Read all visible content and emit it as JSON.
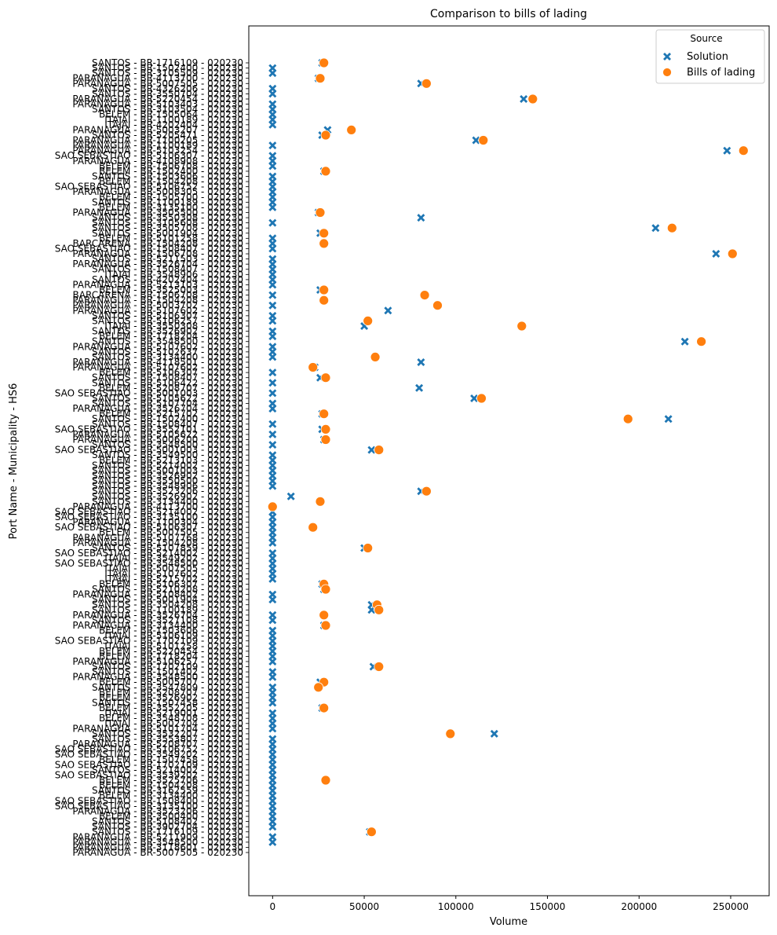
{
  "chart_data": {
    "type": "scatter",
    "title": "Comparison to bills of lading",
    "xlabel": "Volume",
    "ylabel": "Port Name - Municipality - HS6",
    "xlim": [
      -13000,
      271000
    ],
    "xticks": [
      0,
      50000,
      100000,
      150000,
      200000,
      250000
    ],
    "xtick_labels": [
      "0",
      "50000",
      "100000",
      "150000",
      "200000",
      "250000"
    ],
    "categories": [
      "SANTOS - BR-1716109 - 020230",
      "SANTOS - BR-1502400 - 020230",
      "SANTOS - BR-3105509 - 020230",
      "PARANAGUA - BR-4113700 - 020230",
      "PARANAGUA - BR-5007505 - 020230",
      "SANTOS - BR-4326206 - 020230",
      "SANTOS - BR-3550704 - 020230",
      "PARANAGUA - BR-5220454 - 020230",
      "PARANAGUA - BR-5103403 - 020230",
      "SANTOS - BR-3103504 - 020230",
      "BELEM - BR-1505064 - 020230",
      "ITAJAI - BR-1100189 - 020230",
      "ITAJAI - BR-4202404 - 020230",
      "PARANAGUA - BR-5003207 - 020230",
      "SANTOS - BR-5205471 - 020230",
      "PARANAGUA - BR-1100205 - 020230",
      "PARANAGUA - BR-1100189 - 020230",
      "PARANAGUA - BR-5103254 - 020230",
      "SAO SEBASTIAO - BR-5106307 - 020230",
      "PARANAGUA - BR-4108908 - 020230",
      "BELEM - BR-1506708 - 020230",
      "BELEM - BR-1502400 - 020230",
      "SANTOS - BR-1503606 - 020230",
      "BELEM - BR-1504208 - 020230",
      "SAO SEBASTIAO - BR-5106752 - 020230",
      "PARANAGUA - BR-5008305 - 020230",
      "BELEM - BR-1505700 - 020230",
      "SANTOS - BR-1100189 - 020230",
      "BELEM - BR-3135100 - 020230",
      "PARANAGUA - BR-3505500 - 020230",
      "SANTOS - BR-3550308 - 020230",
      "SANTOS - BR-3105608 - 020230",
      "SANTOS - BR-3505708 - 020230",
      "SANTOS - BR-5001904 - 020230",
      "BELEM - BR-5101258 - 020230",
      "BARCARENA - BR-1504208 - 020230",
      "SAO SEBASTIAO - BR-1508407 - 020230",
      "PARANAGUA - BR-1506708 - 020230",
      "SANTOS - BR-5211503 - 020230",
      "PARANAGUA - BR-3526704 - 020230",
      "SANTOS - BR-1508407 - 020230",
      "ITAJAI - BR-3548906 - 020230",
      "SANTOS - BR-4202404 - 020230",
      "PARANAGUA - BR-5213103 - 020230",
      "BELEM - BR-3525003 - 020230",
      "BARCARENA - BR-1506708 - 020230",
      "PARANAGUA - BR-1504208 - 020230",
      "PARANAGUA - BR-5003702 - 020230",
      "PARANAGUA - BR-5107602 - 020230",
      "SANTOS - BR-5106307 - 020230",
      "SANTOS - BR-5106257 - 020230",
      "ITAJAI - BR-3550308 - 020230",
      "SANTOS - BR-3526902 - 020230",
      "BELEM - BR-1718204 - 020230",
      "SANTOS - BR-3548500 - 020230",
      "PARANAGUA - BR-5107602 - 020230",
      "SANTOS - BR-5102637 - 020230",
      "SANTOS - BR-3134400 - 020230",
      "PARANAGUA - BR-4118501 - 020230",
      "PARANAGUA - BR-5107602 - 020230",
      "BELEM - BR-5106307 - 020230",
      "SANTOS - BR-1508407 - 020230",
      "SANTOS - BR-5106422 - 020230",
      "BELEM - BR-5208707 - 020230",
      "SAO SEBASTIAO - BR-5001003 - 020230",
      "SANTOS - BR-5105622 - 020230",
      "SANTOS - BR-5107704 - 020230",
      "PARANAGUA - BR-3526704 - 020230",
      "BELEM - BR-5215702 - 020230",
      "SANTOS - BR-1502400 - 020230",
      "SANTOS - BR-1508407 - 020230",
      "SAO SEBASTIAO - BR-3552101 - 020230",
      "PARANAGUA - BR-5105622 - 020230",
      "PARANAGUA - BR-5006200 - 020230",
      "SANTOS - BR-3548500 - 020230",
      "SAO SEBASTIAO - BR-5001003 - 020230",
      "SANTOS - BR-3549500 - 020230",
      "BELEM - BR-5213103 - 020230",
      "SANTOS - BR-5214002 - 020230",
      "SANTOS - BR-5001003 - 020230",
      "SANTOS - BR-3526902 - 020230",
      "SANTOS - BR-3550500 - 020230",
      "SANTOS - BR-3548906 - 020230",
      "SANTOS - BR-3523206 - 020230",
      "SANTOS - BR-3526902 - 020230",
      "SANTOS - BR-3134400 - 020230",
      "PARANAGUA - BR-4113700 - 020230",
      "SAO SEBASTIAO - BR-5214002 - 020230",
      "SAO SEBASTIAO - BR-3135100 - 020230",
      "PARANAGUA - BR-1100304 - 020230",
      "SAO SEBASTIAO - BR-5106307 - 020230",
      "BELEM - BR-5007505 - 020230",
      "PARANAGUA - BR-5107768 - 020230",
      "PARANAGUA - BR-1504208 - 020230",
      "SANTOS - BR-5107859 - 020230",
      "SAO SEBASTIAO - BR-5214002 - 020230",
      "ITAJAI - BR-3549202 - 020230",
      "SAO SEBASTIAO - BR-3548500 - 020230",
      "ITAJAI - BR-5007505 - 020230",
      "ITAJAI - BR-5107602 - 020230",
      "ITAJAI - BR-5215702 - 020230",
      "BELEM - BR-5106307 - 020230",
      "SANTOS - BR-5210208 - 020230",
      "PARANAGUA - BR-5108402 - 020230",
      "SANTOS - BR-5001904 - 020230",
      "SANTOS - BR-3504208 - 020230",
      "SANTOS - BR-1100189 - 020230",
      "PARANAGUA - BR-3526704 - 020230",
      "SANTOS - BR-3527108 - 020230",
      "PARANAGUA - BR-3134400 - 020230",
      "BELEM - BR-1503606 - 020230",
      "ITAJAI - BR-5106109 - 020230",
      "SAO SEBASTIAO - BR-1702109 - 020230",
      "ITAJAI - BR-5101258 - 020230",
      "BELEM - BR-5220454 - 020230",
      "BELEM - BR-1718204 - 020230",
      "PARANAGUA - BR-5106257 - 020230",
      "SANTOS - BR-1702109 - 020230",
      "SANTOS - BR-1501402 - 020230",
      "PARANAGUA - BR-3548500 - 020230",
      "BELEM - BR-5005707 - 020230",
      "SANTOS - BR-3547809 - 020230",
      "BELEM - BR-5208707 - 020230",
      "BELEM - BR-3526902 - 020230",
      "SANTOS - BR-1507458 - 020230",
      "BELEM - BR-3552205 - 020230",
      "ITAJAI - BR-5219001 - 020230",
      "BELEM - BR-3548708 - 020230",
      "ITAJAI - BR-5002704 - 020230",
      "PARANAGUA - BR-5101704 - 020230",
      "SANTOS - BR-3532207 - 020230",
      "SANTOS - BR-3553807 - 020230",
      "PARANAGUA - BR-5208707 - 020230",
      "SAO SEBASTIAO - BR-5106752 - 020230",
      "SAO SEBASTIAO - BR-3549202 - 020230",
      "BELEM - BR-1507458 - 020230",
      "SAO SEBASTIAO - BR-1702109 - 020230",
      "SANTOS - BR-5214002 - 020230",
      "SAO SEBASTIAO - BR-3539202 - 020230",
      "BELEM - BR-3525706 - 020230",
      "BELEM - BR-1504208 - 020230",
      "SANTOS - BR-3162559 - 020230",
      "BELEM - BR-3134400 - 020230",
      "SAO SEBASTIAO - BR-1508400 - 020230",
      "SAO SEBASTIAO - BR-3135100 - 020230",
      "PARANAGUA - BR-3523206 - 020230",
      "BELEM - BR-3500400 - 020230",
      "SANTOS - BR-5108402 - 020230",
      "SANTOS - BR-3902704 - 020230",
      "SANTOS - BR-1716109 - 020230",
      "PARANAGUA - BR-5211909 - 020230",
      "PARANAGUA - BR-3548500 - 020230",
      "PARANAGUA - BR-3118601 - 020230",
      "PARANAGUA - BR-5007505 - 020230"
    ],
    "series": [
      {
        "name": "Solution",
        "marker": "X",
        "color": "#1f77b4",
        "values": [
          27000,
          0,
          0,
          25000,
          81000,
          0,
          0,
          137000,
          0,
          0,
          0,
          0,
          0,
          30000,
          27000,
          111000,
          0,
          248000,
          0,
          0,
          0,
          28000,
          0,
          0,
          0,
          0,
          0,
          0,
          0,
          25000,
          81000,
          0,
          209000,
          26000,
          0,
          0,
          0,
          242000,
          0,
          0,
          0,
          0,
          0,
          0,
          26000,
          0,
          28000,
          0,
          63000,
          0,
          0,
          50000,
          0,
          0,
          225000,
          0,
          0,
          0,
          81000,
          23000,
          0,
          26000,
          0,
          80000,
          0,
          110000,
          0,
          0,
          27000,
          216000,
          0,
          27000,
          0,
          28000,
          0,
          54000,
          0,
          0,
          0,
          0,
          0,
          0,
          0,
          81000,
          10000,
          26000,
          0,
          0,
          0,
          0,
          0,
          0,
          0,
          0,
          50000,
          0,
          0,
          0,
          0,
          0,
          0,
          27000,
          28000,
          0,
          0,
          54000,
          54000,
          0,
          0,
          28000,
          0,
          0,
          0,
          0,
          0,
          0,
          0,
          55000,
          0,
          0,
          26000,
          0,
          0,
          0,
          0,
          27000,
          0,
          0,
          0,
          0,
          121000,
          0,
          0,
          0,
          0,
          0,
          0,
          0,
          0,
          0,
          0,
          0,
          0,
          0,
          0,
          0,
          0,
          0,
          0,
          53000,
          0,
          0
        ]
      },
      {
        "name": "Bills of lading",
        "marker": "o",
        "color": "#ff7f0e",
        "values": [
          28000,
          null,
          null,
          26000,
          84000,
          null,
          null,
          142000,
          null,
          null,
          null,
          null,
          null,
          43000,
          29000,
          115000,
          null,
          257000,
          null,
          null,
          null,
          29000,
          null,
          null,
          null,
          null,
          null,
          null,
          null,
          26000,
          null,
          null,
          218000,
          28000,
          null,
          28000,
          null,
          251000,
          null,
          null,
          null,
          null,
          null,
          null,
          28000,
          83000,
          28000,
          90000,
          null,
          null,
          52000,
          136000,
          null,
          null,
          234000,
          null,
          null,
          56000,
          null,
          22000,
          null,
          29000,
          null,
          null,
          null,
          114000,
          null,
          null,
          28000,
          194000,
          null,
          29000,
          null,
          29000,
          null,
          58000,
          null,
          null,
          null,
          null,
          null,
          null,
          null,
          84000,
          null,
          26000,
          0,
          null,
          null,
          null,
          22000,
          null,
          null,
          null,
          52000,
          null,
          null,
          null,
          null,
          null,
          null,
          28000,
          29000,
          null,
          null,
          57000,
          58000,
          28000,
          null,
          29000,
          null,
          null,
          null,
          null,
          null,
          null,
          null,
          58000,
          null,
          null,
          28000,
          25000,
          null,
          null,
          null,
          28000,
          null,
          null,
          null,
          null,
          97000,
          null,
          null,
          null,
          null,
          null,
          null,
          null,
          null,
          29000,
          null,
          null,
          null,
          null,
          null,
          null,
          null,
          null,
          null,
          54000,
          null,
          null
        ]
      }
    ],
    "legend": {
      "title": "Source",
      "entries": [
        "Solution",
        "Bills of lading"
      ],
      "placement": "top-right"
    }
  }
}
